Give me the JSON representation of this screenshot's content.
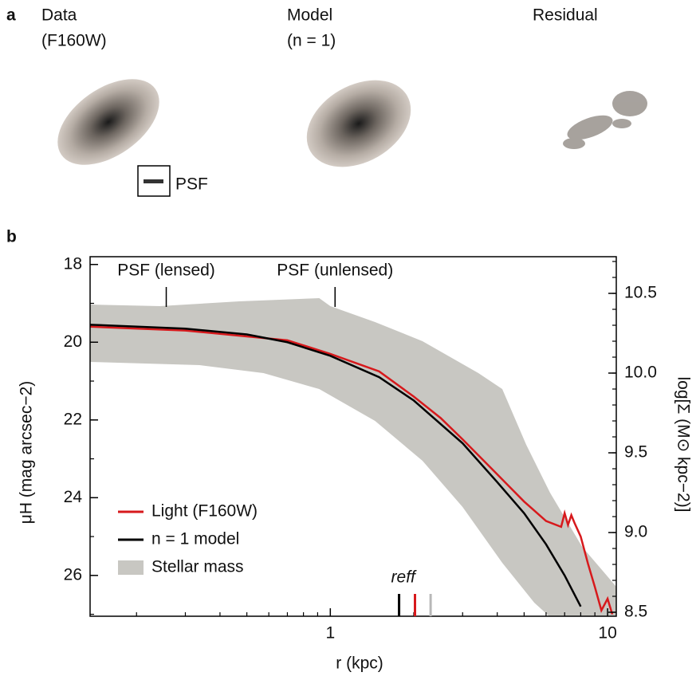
{
  "panel_a": {
    "label": "a",
    "columns": [
      {
        "title": "Data",
        "subtitle": "(F160W)"
      },
      {
        "title": "Model",
        "subtitle": "(n = 1)"
      },
      {
        "title": "Residual"
      }
    ],
    "psf_label": "PSF"
  },
  "chart_data": {
    "type": "line",
    "panel_label": "b",
    "xlabel": "r (kpc)",
    "ylabel": "μH (mag arcsec−2)",
    "y2label": "log[Σ (M⊙ kpc−2)]",
    "xscale": "log",
    "xlim": [
      0.136,
      10.75
    ],
    "xticks": [
      1,
      10
    ],
    "ylim": [
      27.05,
      17.8
    ],
    "yticks": [
      18,
      20,
      22,
      24,
      26
    ],
    "y2lim": [
      8.475,
      10.73
    ],
    "y2ticks": [
      8.5,
      {
        "value": 9,
        "label": "9.0"
      },
      9.5,
      {
        "value": 10,
        "label": "10.0"
      },
      10.5
    ],
    "series": [
      {
        "name": "Light (F160W)",
        "color": "#d7191c",
        "x": [
          0.136,
          0.3,
          0.5,
          0.7,
          1.0,
          1.5,
          2.0,
          2.5,
          3.0,
          4.0,
          5.0,
          6.0,
          6.8,
          7.0,
          7.2,
          7.4,
          7.6,
          8.0,
          8.5,
          9.0,
          9.5,
          10.0,
          10.4
        ],
        "values": [
          19.6,
          19.7,
          19.85,
          19.95,
          20.3,
          20.75,
          21.4,
          21.95,
          22.5,
          23.4,
          24.1,
          24.6,
          24.75,
          24.4,
          24.7,
          24.45,
          24.65,
          25.0,
          25.7,
          26.3,
          26.9,
          26.6,
          27.0
        ]
      },
      {
        "name": "n = 1 model",
        "color": "#000000",
        "x": [
          0.136,
          0.3,
          0.5,
          0.7,
          1.0,
          1.5,
          2.0,
          3.0,
          4.0,
          5.0,
          6.0,
          7.0,
          8.0
        ],
        "values": [
          19.55,
          19.65,
          19.8,
          20.0,
          20.35,
          20.9,
          21.5,
          22.6,
          23.6,
          24.4,
          25.2,
          26.0,
          26.8
        ]
      },
      {
        "name": "Stellar mass",
        "color": "#c8c7c2",
        "axis": "y2",
        "x_upper": [
          0.136,
          0.243,
          0.47,
          0.912,
          1.0,
          1.45,
          2.15,
          3.42,
          4.17,
          5.09,
          6.2,
          8.1,
          10.75
        ],
        "upper": [
          10.43,
          10.42,
          10.45,
          10.47,
          10.42,
          10.32,
          10.2,
          10.0,
          9.9,
          9.55,
          9.25,
          8.91,
          8.66
        ],
        "x_lower": [
          0.136,
          0.338,
          0.574,
          0.912,
          1.45,
          2.15,
          3.0,
          4.17,
          5.44,
          6.2
        ],
        "lower": [
          10.07,
          10.05,
          10.0,
          9.9,
          9.7,
          9.45,
          9.16,
          8.81,
          8.56,
          8.47
        ]
      }
    ],
    "legend": "lower left",
    "annotations": [
      {
        "text": "PSF (lensed)",
        "x": 0.256
      },
      {
        "text": "PSF (unlensed)",
        "x": 1.04
      }
    ],
    "reff_label": "reff",
    "reff_markers": [
      {
        "x": 1.77,
        "color": "#000000"
      },
      {
        "x": 2.02,
        "color": "#d7191c"
      },
      {
        "x": 2.3,
        "color": "#b8b8b8"
      }
    ]
  }
}
